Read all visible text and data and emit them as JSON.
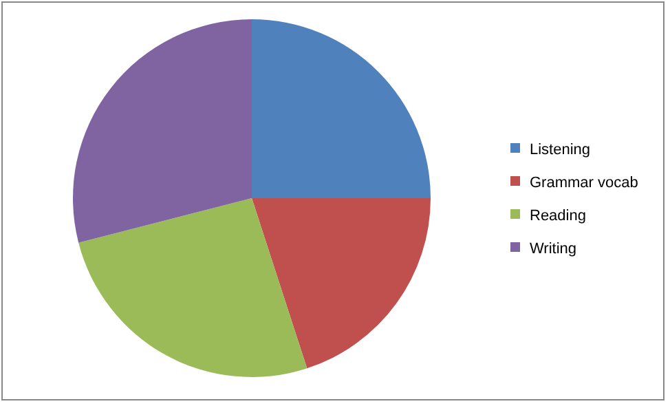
{
  "chart_data": {
    "type": "pie",
    "categories": [
      "Listening",
      "Grammar vocab",
      "Reading",
      "Writing"
    ],
    "values": [
      25,
      20,
      26,
      29
    ],
    "colors": [
      "#4f81bd",
      "#c0504d",
      "#9bbb59",
      "#8064a2"
    ],
    "legend": "right"
  }
}
